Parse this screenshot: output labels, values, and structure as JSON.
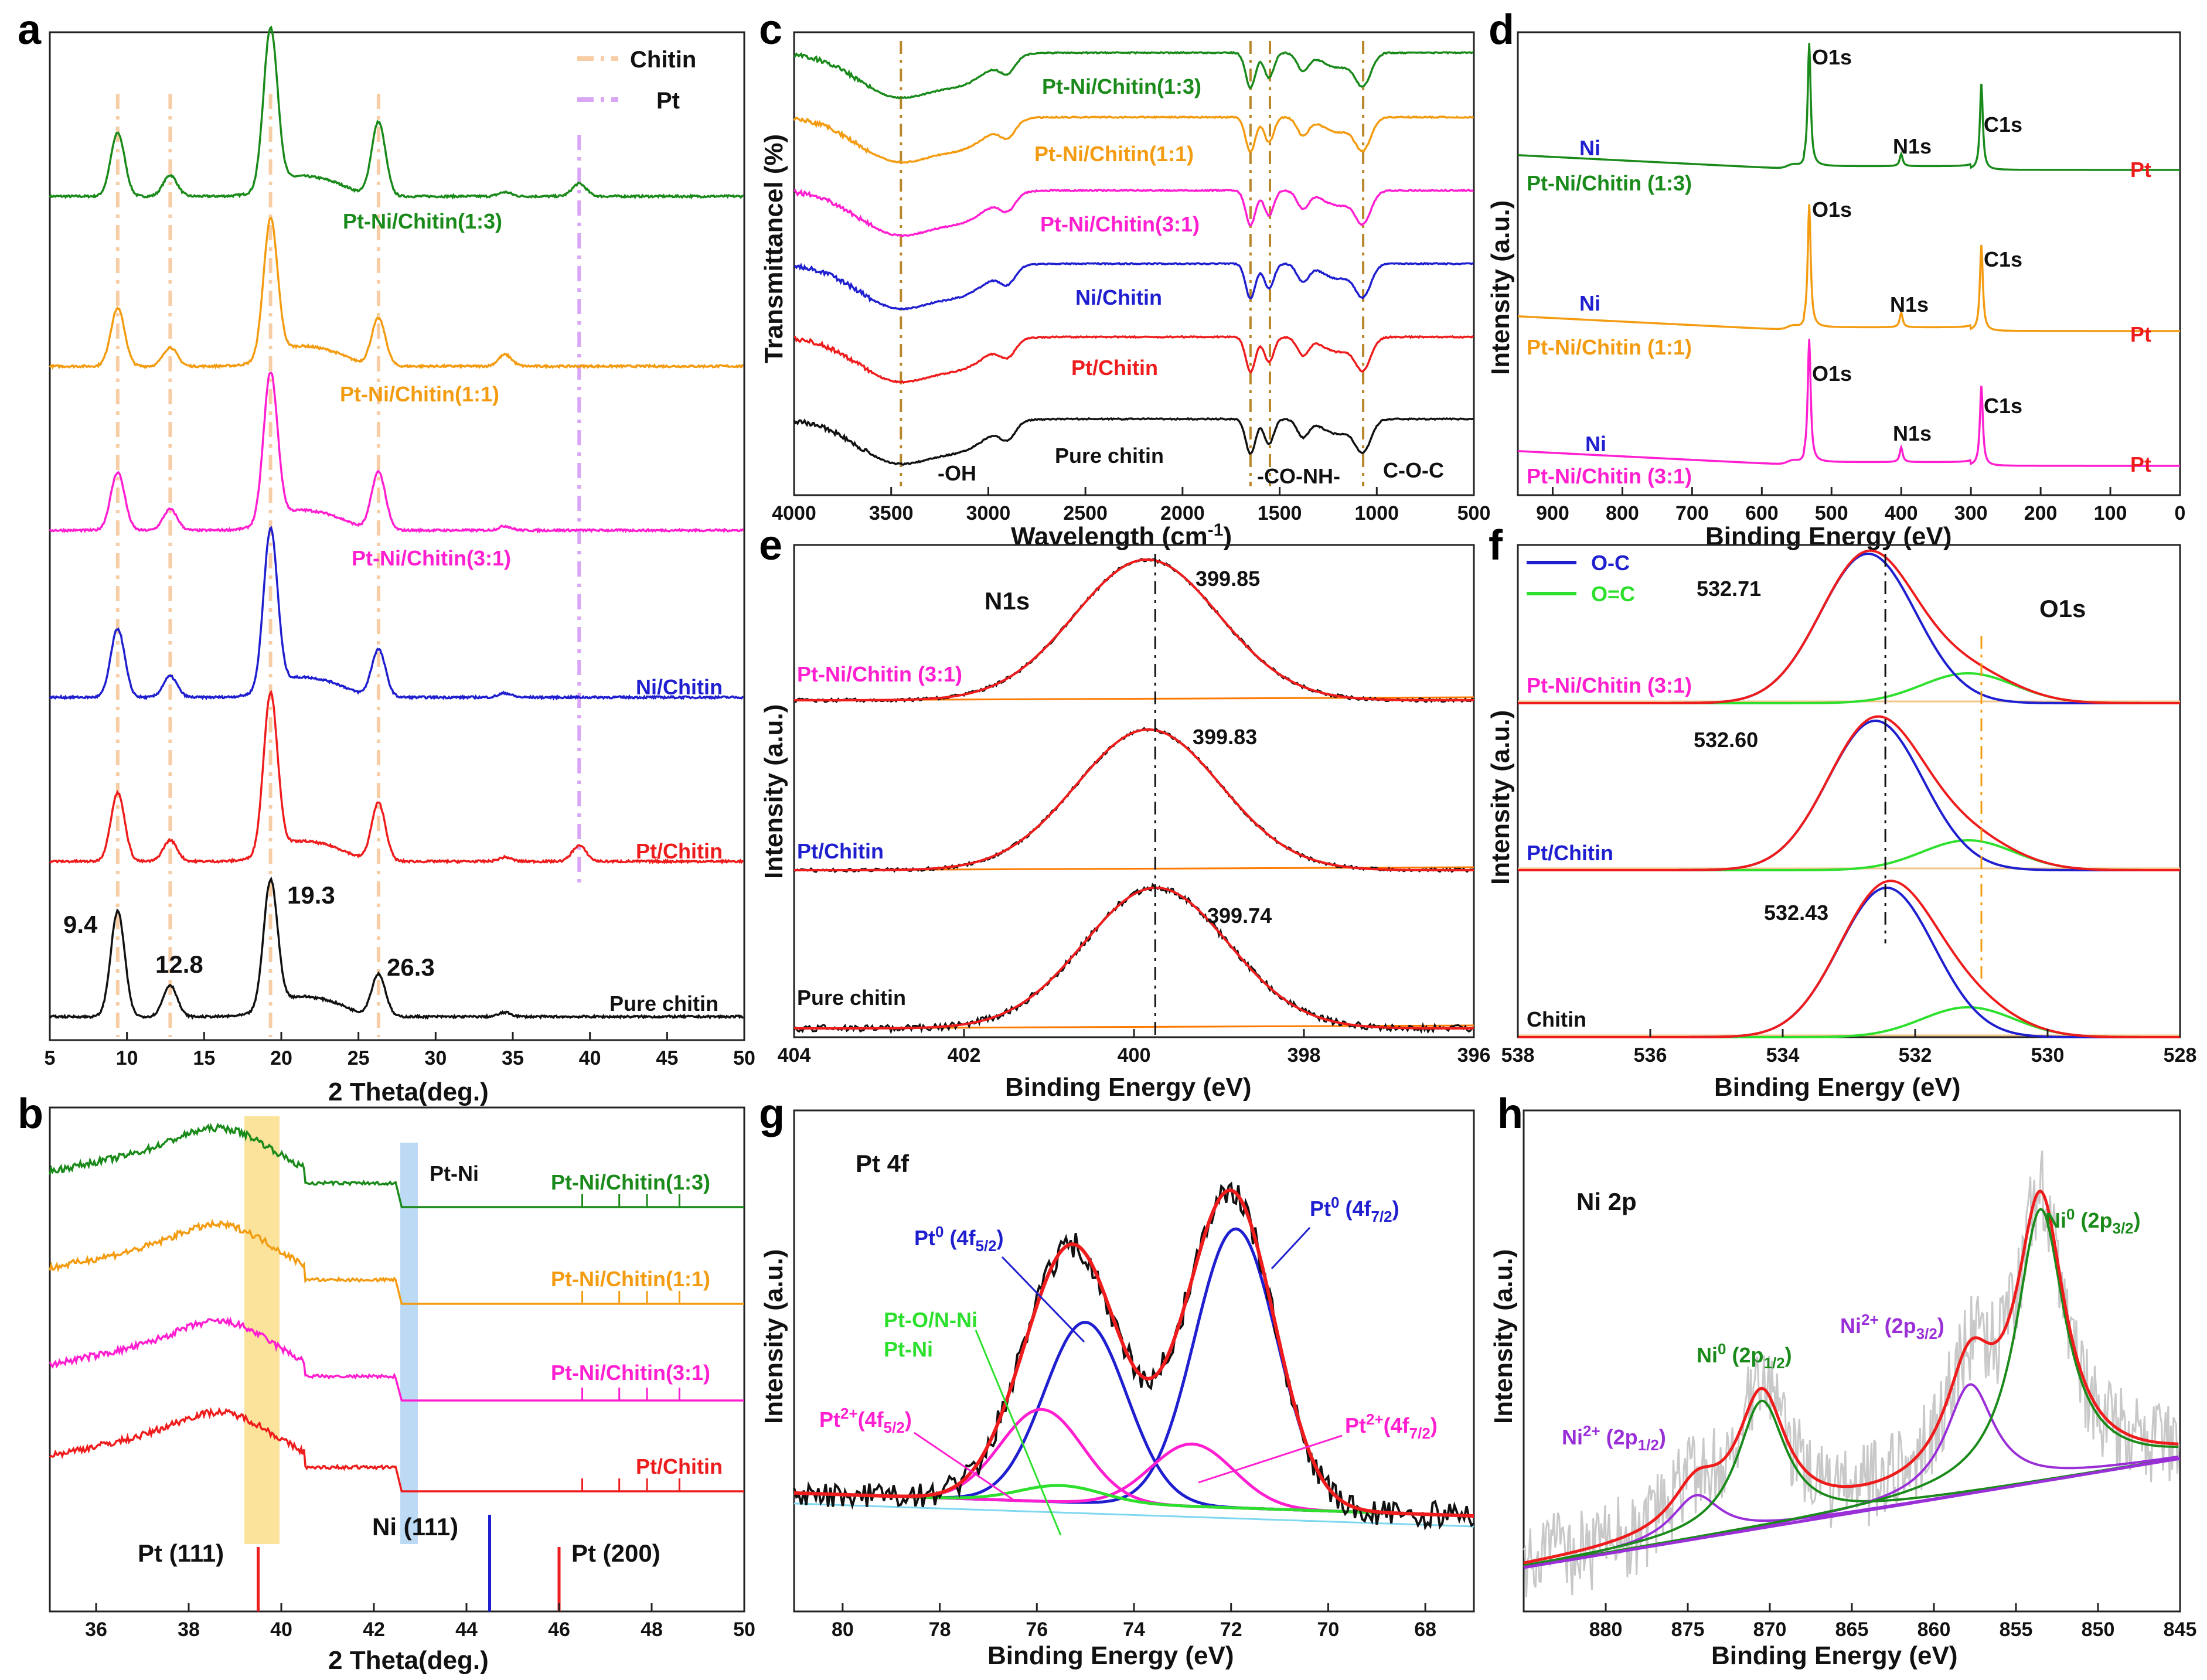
{
  "colors": {
    "green": "#1a8a1a",
    "orange": "#f39c12",
    "magenta": "#ff1fd0",
    "blue": "#1f1fd0",
    "red": "#ee1c1c",
    "black": "#111111",
    "tan": "#b8862b",
    "violet": "#9a2fd8",
    "chitinLine": "#f7cda6",
    "ptLine": "#d9a6f5",
    "lightgreen": "#2ee02e",
    "grey": "#c8c8c8",
    "yellowBand": "#f9d97a",
    "blueBand": "#a7cdf0"
  },
  "chart_data": [
    {
      "id": "a",
      "panel_label": "a",
      "type": "line",
      "xlabel": "2 Theta(deg.)",
      "xlim": [
        5,
        50
      ],
      "xticks": [
        "5",
        "10",
        "15",
        "20",
        "25",
        "30",
        "35",
        "40",
        "45",
        "50"
      ],
      "legend": [
        "Chitin",
        "Pt"
      ],
      "ref_lines": {
        "chitin": [
          9.4,
          12.8,
          19.3,
          26.3
        ],
        "pt": [
          39.3
        ]
      },
      "peak_labels": [
        "9.4",
        "12.8",
        "19.3",
        "26.3"
      ],
      "series": [
        {
          "name": "Pt-Ni/Chitin(1:3)",
          "color": "green",
          "peaks": [
            [
              9.4,
              0.6
            ],
            [
              12.8,
              0.2
            ],
            [
              19.3,
              1.5
            ],
            [
              26.3,
              0.7
            ],
            [
              39.3,
              0.12
            ]
          ]
        },
        {
          "name": "Pt-Ni/Chitin(1:1)",
          "color": "orange",
          "peaks": [
            [
              9.4,
              0.55
            ],
            [
              12.8,
              0.18
            ],
            [
              19.3,
              1.3
            ],
            [
              26.3,
              0.45
            ],
            [
              34.5,
              0.07
            ]
          ]
        },
        {
          "name": "Pt-Ni/Chitin(3:1)",
          "color": "magenta",
          "peaks": [
            [
              9.4,
              0.55
            ],
            [
              12.8,
              0.2
            ],
            [
              19.3,
              1.4
            ],
            [
              26.3,
              0.55
            ]
          ]
        },
        {
          "name": "Ni/Chitin",
          "color": "blue",
          "peaks": [
            [
              9.4,
              0.65
            ],
            [
              12.8,
              0.2
            ],
            [
              19.3,
              1.5
            ],
            [
              26.3,
              0.45
            ]
          ]
        },
        {
          "name": "Pt/Chitin",
          "color": "red",
          "peaks": [
            [
              9.4,
              0.65
            ],
            [
              12.8,
              0.2
            ],
            [
              19.3,
              1.5
            ],
            [
              26.3,
              0.55
            ],
            [
              39.3,
              0.15
            ]
          ]
        },
        {
          "name": "Pure chitin",
          "color": "black",
          "peaks": [
            [
              9.4,
              1.0
            ],
            [
              12.8,
              0.3
            ],
            [
              19.3,
              1.2
            ],
            [
              26.3,
              0.4
            ]
          ]
        }
      ]
    },
    {
      "id": "b",
      "panel_label": "b",
      "type": "line",
      "xlabel": "2 Theta(deg.)",
      "xlim": [
        35,
        50
      ],
      "xticks": [
        "36",
        "38",
        "40",
        "42",
        "44",
        "46",
        "48",
        "50"
      ],
      "band_label": "Pt-Ni",
      "series": [
        {
          "name": "Pt-Ni/Chitin(1:3)",
          "color": "green"
        },
        {
          "name": "Pt-Ni/Chitin(1:1)",
          "color": "orange"
        },
        {
          "name": "Pt-Ni/Chitin(3:1)",
          "color": "magenta"
        },
        {
          "name": "Pt/Chitin",
          "color": "red"
        }
      ],
      "references": [
        {
          "label": "Pt (111)",
          "x": 39.5,
          "color": "red"
        },
        {
          "label": "Ni (111)",
          "x": 44.5,
          "color": "blue"
        },
        {
          "label": "Pt (200)",
          "x": 46.0,
          "color": "red"
        }
      ]
    },
    {
      "id": "c",
      "panel_label": "c",
      "type": "line",
      "xlabel": "Wavelength (cm",
      "xlabel_sup": "-1",
      "xlabel_end": ")",
      "ylabel": "Transmittancel (%)",
      "xlim": [
        4000,
        500
      ],
      "xticks": [
        "4000",
        "3500",
        "3000",
        "2500",
        "2000",
        "1500",
        "1000",
        "500"
      ],
      "ref_lines": [
        3450,
        1650,
        1550,
        1070
      ],
      "annotations": [
        "-OH",
        "-CO-NH-",
        "C-O-C"
      ],
      "series": [
        {
          "name": "Pt-Ni/Chitin(1:3)",
          "color": "green"
        },
        {
          "name": "Pt-Ni/Chitin(1:1)",
          "color": "orange"
        },
        {
          "name": "Pt-Ni/Chitin(3:1)",
          "color": "magenta"
        },
        {
          "name": "Ni/Chitin",
          "color": "blue"
        },
        {
          "name": "Pt/Chitin",
          "color": "red"
        },
        {
          "name": "Pure chitin",
          "color": "black"
        }
      ]
    },
    {
      "id": "d",
      "panel_label": "d",
      "type": "line",
      "xlabel": "Binding Energy (eV)",
      "ylabel": "Intensity (a.u.)",
      "xlim": [
        950,
        0
      ],
      "xticks": [
        "900",
        "800",
        "700",
        "600",
        "500",
        "400",
        "300",
        "200",
        "100",
        "0"
      ],
      "peak_names": {
        "O": "O1s",
        "N": "N1s",
        "C": "C1s",
        "Ni": "Ni",
        "Pt": "Pt"
      },
      "series": [
        {
          "name": "Pt-Ni/Chitin (1:3)",
          "color": "green",
          "peaks": [
            [
              532,
              1.0
            ],
            [
              400,
              0.1
            ],
            [
              285,
              0.7
            ]
          ]
        },
        {
          "name": "Pt-Ni/Chitin (1:1)",
          "color": "orange",
          "peaks": [
            [
              532,
              1.0
            ],
            [
              400,
              0.12
            ],
            [
              285,
              0.7
            ]
          ]
        },
        {
          "name": "Pt-Ni/Chitin (3:1)",
          "color": "magenta",
          "peaks": [
            [
              532,
              1.0
            ],
            [
              400,
              0.12
            ],
            [
              285,
              0.65
            ]
          ]
        }
      ]
    },
    {
      "id": "e",
      "panel_label": "e",
      "type": "line",
      "xlabel": "Binding Energy (eV)",
      "ylabel": "Intensity (a.u.)",
      "xlim": [
        404,
        396
      ],
      "xticks": [
        "404",
        "402",
        "400",
        "398",
        "396"
      ],
      "title": "N1s",
      "ref_line": 399.75,
      "series": [
        {
          "name": "Pt-Ni/Chitin (3:1)",
          "color": "magenta",
          "center": 399.85,
          "label": "399.85"
        },
        {
          "name": "Pt/Chitin",
          "color": "blue",
          "center": 399.83,
          "label": "399.83"
        },
        {
          "name": "Pure chitin",
          "color": "black",
          "center": 399.74,
          "label": "399.74"
        }
      ]
    },
    {
      "id": "f",
      "panel_label": "f",
      "type": "line",
      "xlabel": "Binding Energy (eV)",
      "ylabel": "Intensity (a.u.)",
      "xlim": [
        538,
        528
      ],
      "xticks": [
        "538",
        "536",
        "534",
        "532",
        "530",
        "528"
      ],
      "title": "O1s",
      "legend": [
        "O-C",
        "O=C"
      ],
      "ref_lines": [
        532.45,
        531.0
      ],
      "series": [
        {
          "name": "Pt-Ni/Chitin (3:1)",
          "color": "magenta",
          "center": 532.71,
          "label": "532.71"
        },
        {
          "name": "Pt/Chitin",
          "color": "blue",
          "center": 532.6,
          "label": "532.60"
        },
        {
          "name": "Chitin",
          "color": "black",
          "center": 532.43,
          "label": "532.43"
        }
      ]
    },
    {
      "id": "g",
      "panel_label": "g",
      "type": "line",
      "xlabel": "Binding Energy (eV)",
      "ylabel": "Intensity (a.u.)",
      "xlim": [
        81,
        67
      ],
      "xticks": [
        "80",
        "78",
        "76",
        "74",
        "72",
        "70",
        "68"
      ],
      "title": "Pt 4f",
      "components": [
        {
          "name": "Pt0 4f5/2",
          "center": 75.0,
          "amp": 0.55,
          "color": "blue"
        },
        {
          "name": "Pt0 4f7/2",
          "center": 71.9,
          "amp": 0.85,
          "color": "blue"
        },
        {
          "name": "Pt2+ 4f5/2",
          "center": 75.9,
          "amp": 0.28,
          "color": "magenta"
        },
        {
          "name": "Pt2+ 4f7/2",
          "center": 72.8,
          "amp": 0.19,
          "color": "magenta"
        },
        {
          "name": "Pt-O/N-Ni",
          "center": 75.5,
          "amp": 0.05,
          "color": "lightgreen"
        }
      ],
      "labels": {
        "pt0_52": "Pt",
        "pt0_72": "Pt",
        "sup0": "0",
        "sub52": "4f",
        "sub52b": "5/2",
        "sub72b": "7/2",
        "pt2": "Pt",
        "sup2": "2+",
        "ptoni": "Pt-O/N-Ni",
        "ptni": "Pt-Ni"
      }
    },
    {
      "id": "h",
      "panel_label": "h",
      "type": "line",
      "xlabel": "Binding Energy (eV)",
      "ylabel": "Intensity (a.u.)",
      "xlim": [
        885,
        845
      ],
      "xticks": [
        "880",
        "875",
        "870",
        "865",
        "860",
        "855",
        "850",
        "845"
      ],
      "title": "Ni 2p",
      "components": [
        {
          "name": "Ni2+ 2p1/2",
          "center": 874.5,
          "amp": 0.12,
          "color": "violet"
        },
        {
          "name": "Ni0 2p1/2",
          "center": 870.5,
          "amp": 0.35,
          "color": "green"
        },
        {
          "name": "Ni2+ 2p3/2",
          "center": 857.8,
          "amp": 0.3,
          "color": "violet"
        },
        {
          "name": "Ni0 2p3/2",
          "center": 853.5,
          "amp": 0.75,
          "color": "green"
        }
      ]
    }
  ]
}
